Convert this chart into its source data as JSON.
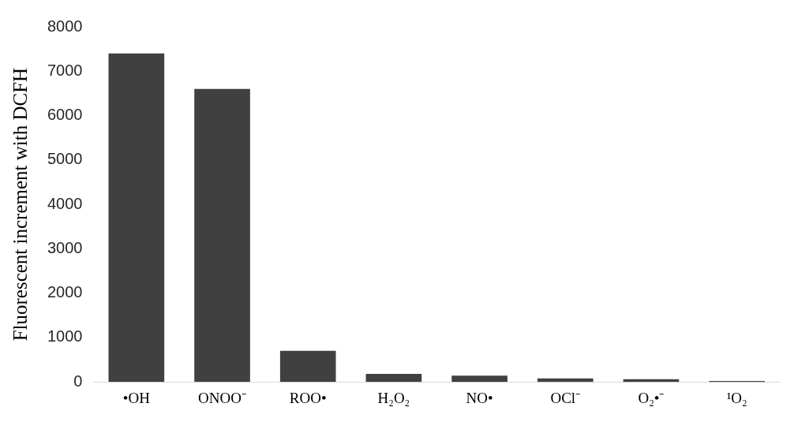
{
  "chart_data": {
    "type": "bar",
    "ylabel": "Fluorescent increment with DCFH",
    "categories": [
      "•OH",
      "ONOO⁻",
      "ROO•",
      "H₂O₂",
      "NO•",
      "OCl⁻",
      "O₂•⁻",
      "¹O₂"
    ],
    "values": [
      7400,
      6600,
      700,
      180,
      140,
      80,
      60,
      20
    ],
    "color": "#404040",
    "ylim": [
      0,
      8000
    ],
    "yticks": [
      0,
      1000,
      2000,
      3000,
      4000,
      5000,
      6000,
      7000,
      8000
    ],
    "grid": false,
    "legend": false
  }
}
